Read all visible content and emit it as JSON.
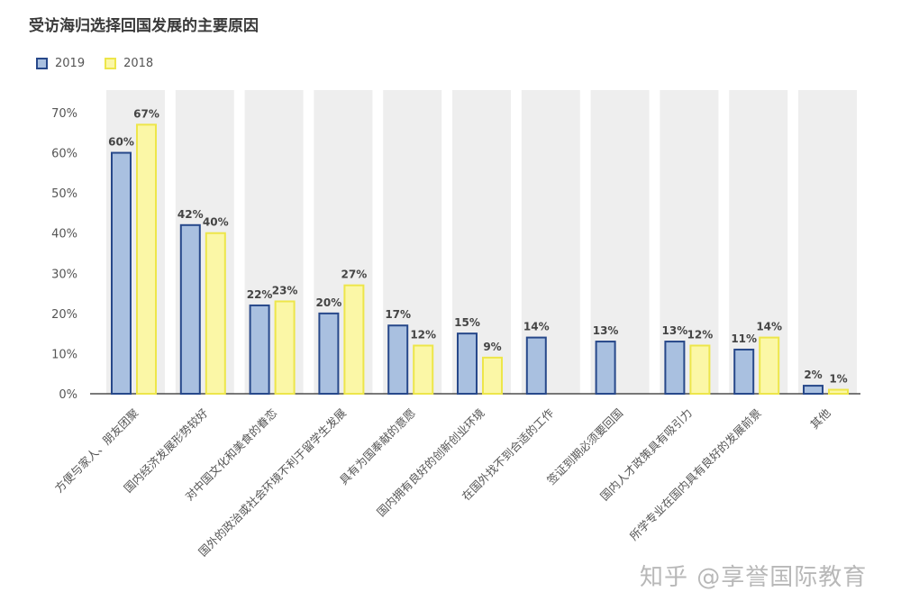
{
  "chart_data": {
    "type": "bar",
    "title": "受访海归选择回国发展的主要原因",
    "categories": [
      "方便与家人、朋友团聚",
      "国内经济发展形势较好",
      "对中国文化和美食的眷恋",
      "国外的政治或社会环境不利于留学生发展",
      "具有为国奉献的意愿",
      "国内拥有良好的创新创业环境",
      "在国外找不到合适的工作",
      "签证到期必须要回国",
      "国内人才政策具有吸引力",
      "所学专业在国内具有良好的发展前景",
      "其他"
    ],
    "series": [
      {
        "name": "2019",
        "values": [
          60,
          42,
          22,
          20,
          17,
          15,
          14,
          13,
          13,
          11,
          2
        ],
        "labels": [
          "60%",
          "42%",
          "22%",
          "20%",
          "17%",
          "15%",
          "14%",
          "13%",
          "13%",
          "11%",
          "2%"
        ],
        "fill": "#a9c0e0",
        "stroke": "#27488a"
      },
      {
        "name": "2018",
        "values": [
          67,
          40,
          23,
          27,
          12,
          9,
          null,
          null,
          12,
          14,
          1
        ],
        "labels": [
          "67%",
          "40%",
          "23%",
          "27%",
          "12%",
          "9%",
          "",
          "",
          "12%",
          "14%",
          "1%"
        ],
        "fill": "#fbf7a6",
        "stroke": "#ede64a"
      }
    ],
    "yticks": [
      "0%",
      "10%",
      "20%",
      "30%",
      "40%",
      "50%",
      "60%",
      "70%"
    ],
    "ylim": [
      0,
      70
    ],
    "grid": false,
    "legend_position": "top-left"
  },
  "watermark": "知乎 @享誉国际教育"
}
